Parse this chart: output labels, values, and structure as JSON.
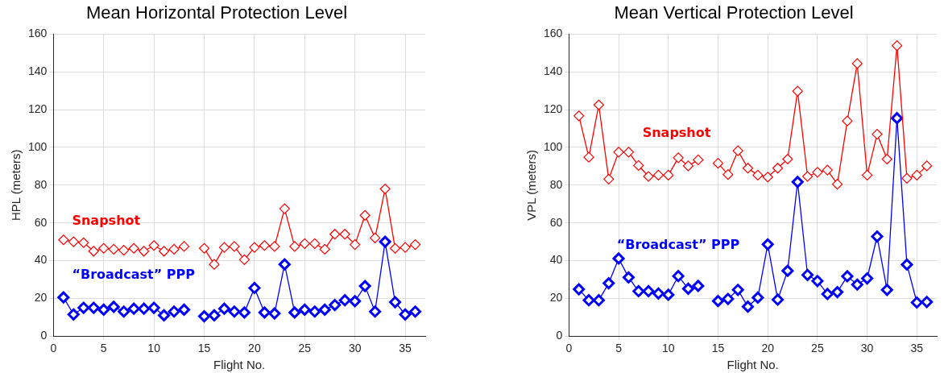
{
  "chart_data": [
    {
      "type": "line",
      "title": "Mean Horizontal Protection Level",
      "xlabel": "Flight No.",
      "ylabel": "HPL (meters)",
      "x": [
        1,
        2,
        3,
        4,
        5,
        6,
        7,
        8,
        9,
        10,
        11,
        12,
        13,
        14,
        15,
        16,
        17,
        18,
        19,
        20,
        21,
        22,
        23,
        24,
        25,
        26,
        27,
        28,
        29,
        30,
        31,
        32,
        33,
        34,
        35,
        36
      ],
      "series": [
        {
          "name": "Snapshot",
          "color": "#ff0000",
          "values": [
            51,
            50,
            49.5,
            45,
            46.5,
            46,
            45.5,
            46.5,
            45,
            48,
            45,
            46,
            47.5,
            null,
            46.5,
            38,
            47,
            47.5,
            40.5,
            47,
            48,
            47.5,
            67.5,
            47.5,
            49,
            49,
            46,
            54,
            54,
            48.5,
            64,
            52,
            78,
            46.5,
            47,
            48.5
          ]
        },
        {
          "name": "“Broadcast” PPP",
          "color": "#0000ff",
          "values": [
            20.5,
            11.5,
            15,
            15,
            14,
            15.5,
            13,
            14.5,
            14.5,
            15,
            11,
            13,
            14,
            null,
            10.5,
            11,
            14.5,
            13,
            12.5,
            25.5,
            12.5,
            12,
            38,
            12.5,
            14,
            13,
            14,
            16.5,
            19,
            18.5,
            26.5,
            13,
            50,
            18,
            11.5,
            13
          ]
        }
      ],
      "xlim": [
        0,
        37
      ],
      "xticks": [
        0,
        5,
        10,
        15,
        20,
        25,
        30,
        35
      ],
      "ylim": [
        0,
        160
      ],
      "yticks": [
        0,
        20,
        40,
        60,
        80,
        100,
        120,
        140,
        160
      ],
      "grid": true,
      "legend": false,
      "marker": "diamond",
      "line_style": "solid"
    },
    {
      "type": "line",
      "title": "Mean Vertical Protection Level",
      "xlabel": "Flight No.",
      "ylabel": "VPL (meters)",
      "x": [
        1,
        2,
        3,
        4,
        5,
        6,
        7,
        8,
        9,
        10,
        11,
        12,
        13,
        14,
        15,
        16,
        17,
        18,
        19,
        20,
        21,
        22,
        23,
        24,
        25,
        26,
        27,
        28,
        29,
        30,
        31,
        32,
        33,
        34,
        35,
        36
      ],
      "series": [
        {
          "name": "Snapshot",
          "color": "#ff0000",
          "values": [
            116.7,
            94.8,
            122.5,
            83.2,
            97.5,
            97.5,
            90.4,
            84.6,
            85.3,
            85.3,
            94.5,
            90.2,
            93.4,
            null,
            91.6,
            85.6,
            98.2,
            89,
            85.3,
            84.3,
            89,
            93.8,
            129.8,
            84.6,
            86.8,
            88,
            80.5,
            114,
            144.4,
            85.3,
            107,
            93.8,
            153.9,
            83.6,
            85.3,
            90.2
          ]
        },
        {
          "name": "“Broadcast” PPP",
          "color": "#0000ff",
          "values": [
            24.8,
            19,
            19,
            28,
            41.1,
            31.1,
            23.8,
            23.8,
            22.6,
            21.9,
            31.8,
            25.1,
            26.6,
            null,
            18.6,
            19.7,
            24.5,
            15.6,
            20.4,
            48.6,
            19.3,
            34.6,
            81.7,
            32.4,
            29.2,
            22.3,
            23.3,
            31.7,
            27.3,
            30.6,
            52.8,
            24.5,
            115.5,
            37.9,
            17.8,
            18.1
          ]
        }
      ],
      "xlim": [
        0,
        37
      ],
      "xticks": [
        0,
        5,
        10,
        15,
        20,
        25,
        30,
        35
      ],
      "ylim": [
        0,
        160
      ],
      "yticks": [
        0,
        20,
        40,
        60,
        80,
        100,
        120,
        140,
        160
      ],
      "grid": true,
      "legend": false,
      "marker": "diamond",
      "line_style": "solid"
    }
  ]
}
